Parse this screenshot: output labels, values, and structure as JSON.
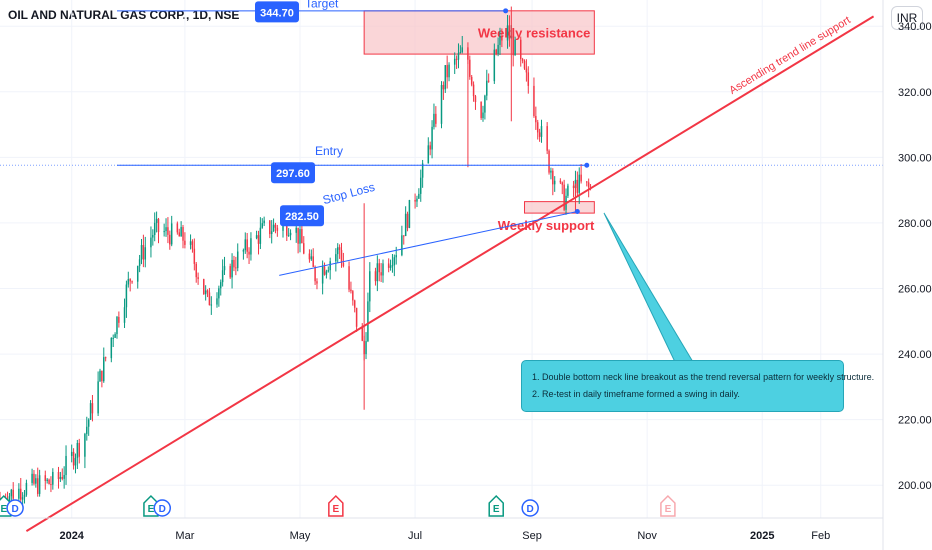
{
  "header": {
    "title": "OIL AND NATURAL GAS CORP., 1D, NSE",
    "currency": "INR"
  },
  "colors": {
    "up": "#089981",
    "down": "#f23645",
    "trend": "#f23645",
    "level": "#2962ff",
    "zone_fill": "#f8c4c8",
    "callout": "#4dd0e1"
  },
  "chart_data": {
    "type": "candlestick",
    "title": "OIL AND NATURAL GAS CORP., 1D, NSE",
    "ylim": [
      190,
      348
    ],
    "y_ticks": [
      200,
      220,
      240,
      260,
      280,
      300,
      320,
      340
    ],
    "x_ticks": [
      "2024",
      "Mar",
      "May",
      "Jul",
      "Sep",
      "Nov",
      "2025",
      "Feb"
    ],
    "x_tick_dates": [
      "2024-01-01",
      "2024-03-01",
      "2024-05-01",
      "2024-07-01",
      "2024-09-01",
      "2024-11-01",
      "2025-01-01",
      "2025-02-01"
    ],
    "x_range": [
      "2023-11-24",
      "2025-03-06"
    ],
    "price_anchors": [
      [
        "2023-11-24",
        196
      ],
      [
        "2023-12-10",
        200
      ],
      [
        "2023-12-24",
        201
      ],
      [
        "2024-01-07",
        214
      ],
      [
        "2024-01-22",
        245
      ],
      [
        "2024-02-02",
        265
      ],
      [
        "2024-02-14",
        278
      ],
      [
        "2024-03-02",
        275
      ],
      [
        "2024-03-13",
        256
      ],
      [
        "2024-03-27",
        268
      ],
      [
        "2024-04-12",
        278
      ],
      [
        "2024-04-27",
        280
      ],
      [
        "2024-05-09",
        264
      ],
      [
        "2024-05-22",
        272
      ],
      [
        "2024-06-04",
        240
      ],
      [
        "2024-06-07",
        262
      ],
      [
        "2024-06-21",
        272
      ],
      [
        "2024-07-05",
        295
      ],
      [
        "2024-07-17",
        325
      ],
      [
        "2024-07-28",
        333
      ],
      [
        "2024-08-04",
        312
      ],
      [
        "2024-08-12",
        330
      ],
      [
        "2024-08-18",
        340
      ],
      [
        "2024-08-30",
        322
      ],
      [
        "2024-09-10",
        298
      ],
      [
        "2024-09-18",
        287
      ],
      [
        "2024-09-25",
        292
      ],
      [
        "2024-10-02",
        290
      ]
    ],
    "levels": [
      {
        "label": "Target",
        "value": 344.7,
        "price_tag": "344.70",
        "from": "2024-01-25",
        "to": "2024-08-18"
      },
      {
        "label": "Entry",
        "value": 297.6,
        "price_tag": "297.60",
        "from": "2024-01-25",
        "to": "2024-09-30"
      },
      {
        "label": "Stop Loss",
        "value": 282.5,
        "price_tag": "282.50",
        "from": "2024-01-25",
        "to": "2024-09-20"
      }
    ],
    "zones": [
      {
        "label": "Weekly resistance",
        "from": "2024-06-04",
        "to": "2024-10-04",
        "top": 344.7,
        "bottom": 331.5
      },
      {
        "label": "Weekly support",
        "from": "2024-08-28",
        "to": "2024-10-04",
        "top": 286.5,
        "bottom": 283
      }
    ],
    "trendline": {
      "label": "Ascending trend line support",
      "start": [
        "2023-12-08",
        186
      ],
      "end": [
        "2025-03-01",
        343
      ]
    },
    "neckline": {
      "start": [
        "2024-04-20",
        264
      ],
      "end": [
        "2024-09-25",
        283.5
      ]
    },
    "events": [
      {
        "date": "2023-11-26",
        "type": "E",
        "kind": "earnings-past"
      },
      {
        "date": "2023-12-02",
        "type": "D",
        "kind": "dividend"
      },
      {
        "date": "2024-02-12",
        "type": "E",
        "kind": "earnings-past"
      },
      {
        "date": "2024-02-18",
        "type": "D",
        "kind": "dividend"
      },
      {
        "date": "2024-05-20",
        "type": "E",
        "kind": "earnings-past-red"
      },
      {
        "date": "2024-08-13",
        "type": "E",
        "kind": "earnings-past"
      },
      {
        "date": "2024-08-31",
        "type": "D",
        "kind": "dividend"
      },
      {
        "date": "2024-11-12",
        "type": "E",
        "kind": "earnings-future"
      }
    ]
  },
  "callout": {
    "line1": "1. Double bottom neck line breakout as the trend reversal pattern for weekly structure.",
    "line2": "2. Re-test in daily timeframe formed a swing in daily."
  }
}
